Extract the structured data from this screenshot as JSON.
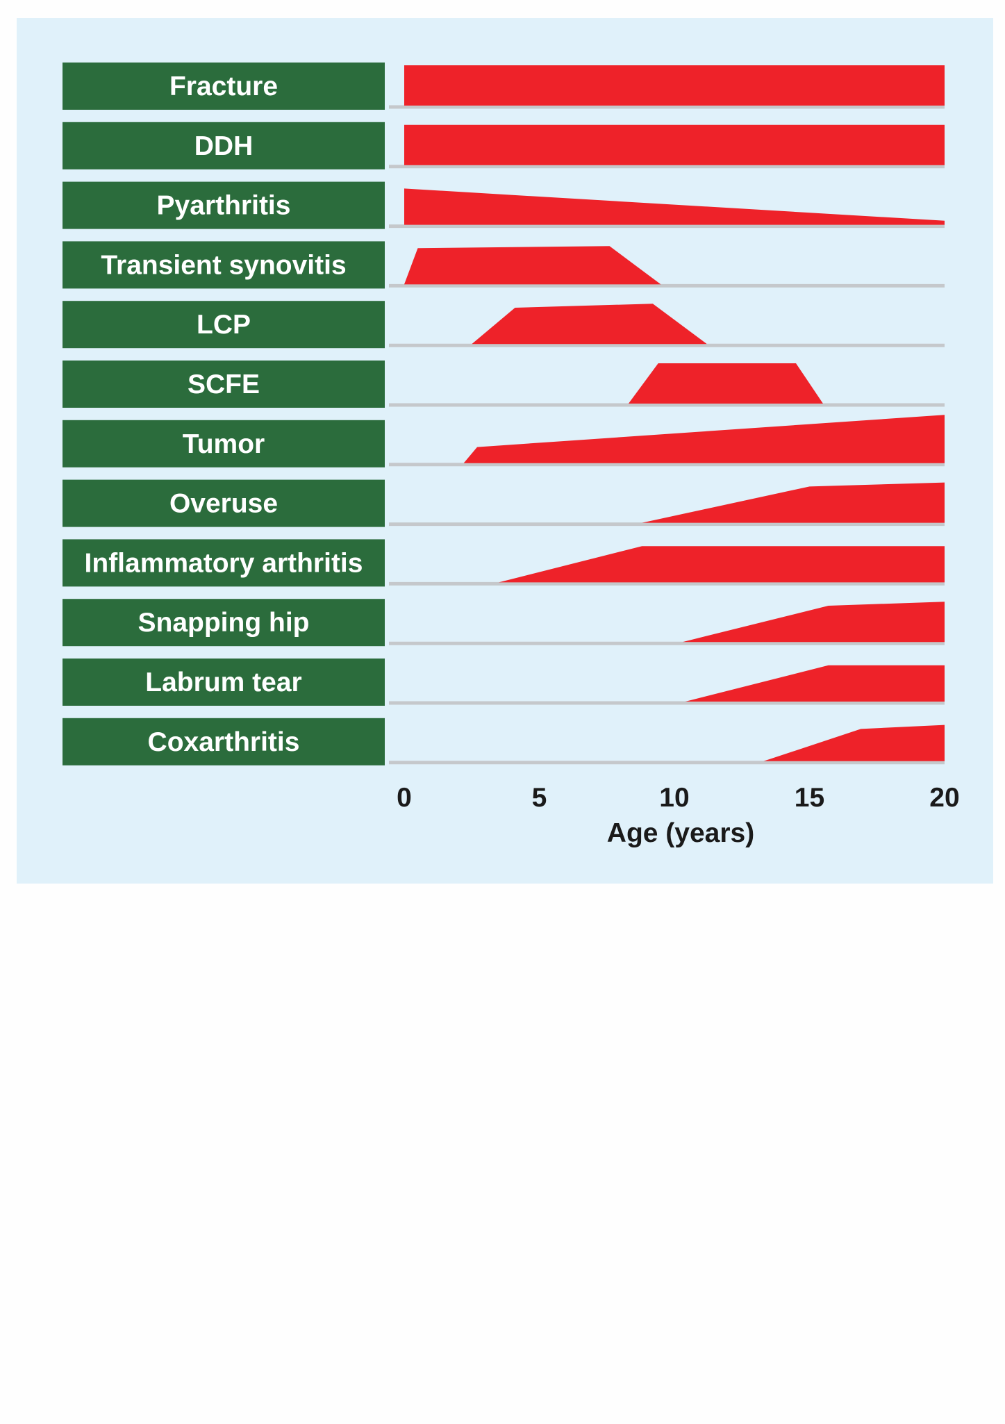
{
  "chart_data": {
    "type": "area",
    "xlabel": "Age (years)",
    "ylabel": "",
    "title": "",
    "xlim": [
      0,
      20
    ],
    "xticks": [
      0,
      5,
      10,
      15,
      20
    ],
    "colors": {
      "panel": "#e0f1fa",
      "label_box": "#2b6c3c",
      "area": "#ee2229",
      "baseline": "#c5c8cb"
    },
    "y_scale_note": "relative frequency, 1 = maximum band height",
    "series": [
      {
        "name": "Fracture",
        "points": [
          [
            0,
            1.0
          ],
          [
            20,
            1.0
          ]
        ]
      },
      {
        "name": "DDH",
        "points": [
          [
            0,
            1.0
          ],
          [
            20,
            1.0
          ]
        ]
      },
      {
        "name": "Pyarthritis",
        "points": [
          [
            0,
            0.9
          ],
          [
            20,
            0.1
          ]
        ]
      },
      {
        "name": "Transient synovitis",
        "points": [
          [
            0,
            0.0
          ],
          [
            0.5,
            0.9
          ],
          [
            7.6,
            0.95
          ],
          [
            9.5,
            0.0
          ]
        ]
      },
      {
        "name": "LCP",
        "points": [
          [
            2.5,
            0.0
          ],
          [
            4.1,
            0.9
          ],
          [
            9.2,
            1.0
          ],
          [
            11.2,
            0.0
          ]
        ]
      },
      {
        "name": "SCFE",
        "points": [
          [
            8.3,
            0.0
          ],
          [
            9.4,
            1.0
          ],
          [
            14.5,
            1.0
          ],
          [
            15.5,
            0.0
          ]
        ]
      },
      {
        "name": "Tumor",
        "points": [
          [
            2.2,
            0.0
          ],
          [
            2.7,
            0.4
          ],
          [
            20,
            1.2
          ]
        ]
      },
      {
        "name": "Overuse",
        "points": [
          [
            8.8,
            0.0
          ],
          [
            15.0,
            0.9
          ],
          [
            20,
            1.0
          ]
        ]
      },
      {
        "name": "Inflammatory arthritis",
        "points": [
          [
            3.5,
            0.0
          ],
          [
            8.8,
            0.9
          ],
          [
            20,
            0.9
          ]
        ]
      },
      {
        "name": "Snapping hip",
        "points": [
          [
            10.3,
            0.0
          ],
          [
            15.7,
            0.9
          ],
          [
            20,
            1.0
          ]
        ]
      },
      {
        "name": "Labrum tear",
        "points": [
          [
            10.4,
            0.0
          ],
          [
            15.7,
            0.9
          ],
          [
            20,
            0.9
          ]
        ]
      },
      {
        "name": "Coxarthritis",
        "points": [
          [
            13.3,
            0.0
          ],
          [
            16.9,
            0.8
          ],
          [
            20,
            0.9
          ]
        ]
      }
    ]
  }
}
